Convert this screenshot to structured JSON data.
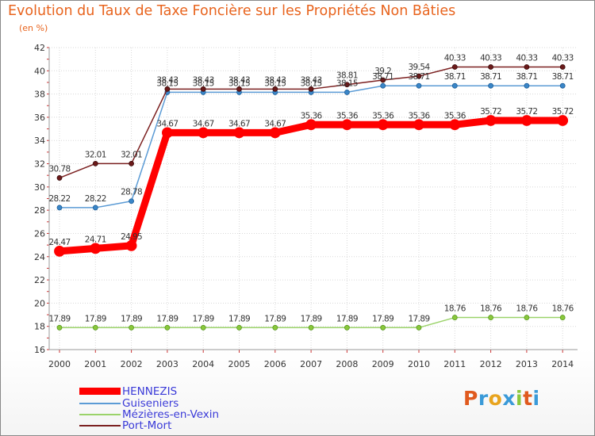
{
  "title": "Evolution du Taux de Taxe Foncière sur les Propriétés Non Bâties",
  "unit": "(en %)",
  "logo": [
    "P",
    "r",
    "o",
    "x",
    "i",
    "t",
    "i"
  ],
  "logo_colors": [
    "#e05a1e",
    "#3a9ad8",
    "#e8a41e",
    "#3a9ad8",
    "#8ac83c",
    "#e05a1e",
    "#3a9ad8"
  ],
  "chart_data": {
    "type": "line",
    "x": [
      "2000",
      "2001",
      "2002",
      "2003",
      "2004",
      "2005",
      "2006",
      "2007",
      "2008",
      "2009",
      "2010",
      "2011",
      "2012",
      "2013",
      "2014"
    ],
    "ylim": [
      16,
      42
    ],
    "yticks": [
      16,
      18,
      20,
      22,
      24,
      26,
      28,
      30,
      32,
      34,
      36,
      38,
      40,
      42
    ],
    "grid": true,
    "legend_position": "bottom-left",
    "series": [
      {
        "name": "HENNEZIS",
        "color": "#ff0000",
        "values": [
          24.47,
          24.71,
          24.95,
          34.67,
          34.67,
          34.67,
          34.67,
          35.36,
          35.36,
          35.36,
          35.36,
          35.36,
          35.72,
          35.72,
          35.72
        ],
        "labels": [
          "24.47",
          "24.71",
          "24.95",
          "34.67",
          "34.67",
          "34.67",
          "34.67",
          "35.36",
          "35.36",
          "35.36",
          "35.36",
          "35.36",
          "35.72",
          "35.72",
          "35.72"
        ]
      },
      {
        "name": "Guiseniers",
        "color": "#5b9bd5",
        "values": [
          28.22,
          28.22,
          28.78,
          38.15,
          38.15,
          38.15,
          38.15,
          38.15,
          38.15,
          38.71,
          38.71,
          38.71,
          38.71,
          38.71,
          38.71
        ],
        "labels": [
          "28.22",
          "28.22",
          "28.78",
          "38.15",
          "38.15",
          "38.15",
          "38.15",
          "38.15",
          "38.15",
          "38.71",
          "38.71",
          "38.71",
          "38.71",
          "38.71",
          "38.71"
        ]
      },
      {
        "name": "Mézières-en-Vexin",
        "color": "#9bd36a",
        "values": [
          17.89,
          17.89,
          17.89,
          17.89,
          17.89,
          17.89,
          17.89,
          17.89,
          17.89,
          17.89,
          17.89,
          18.76,
          18.76,
          18.76,
          18.76
        ],
        "labels": [
          "17.89",
          "17.89",
          "17.89",
          "17.89",
          "17.89",
          "17.89",
          "17.89",
          "17.89",
          "17.89",
          "17.89",
          "17.89",
          "18.76",
          "18.76",
          "18.76",
          "18.76"
        ]
      },
      {
        "name": "Port-Mort",
        "color": "#7b2020",
        "values": [
          30.78,
          32.01,
          32.01,
          38.43,
          38.43,
          38.43,
          38.43,
          38.43,
          38.81,
          39.2,
          39.54,
          40.33,
          40.33,
          40.33,
          40.33
        ],
        "labels": [
          "30.78",
          "32.01",
          "32.01",
          "38.43",
          "38.43",
          "38.43",
          "38.43",
          "38.43",
          "38.81",
          "39.2",
          "39.54",
          "40.33",
          "40.33",
          "40.33",
          "40.33"
        ]
      }
    ]
  }
}
